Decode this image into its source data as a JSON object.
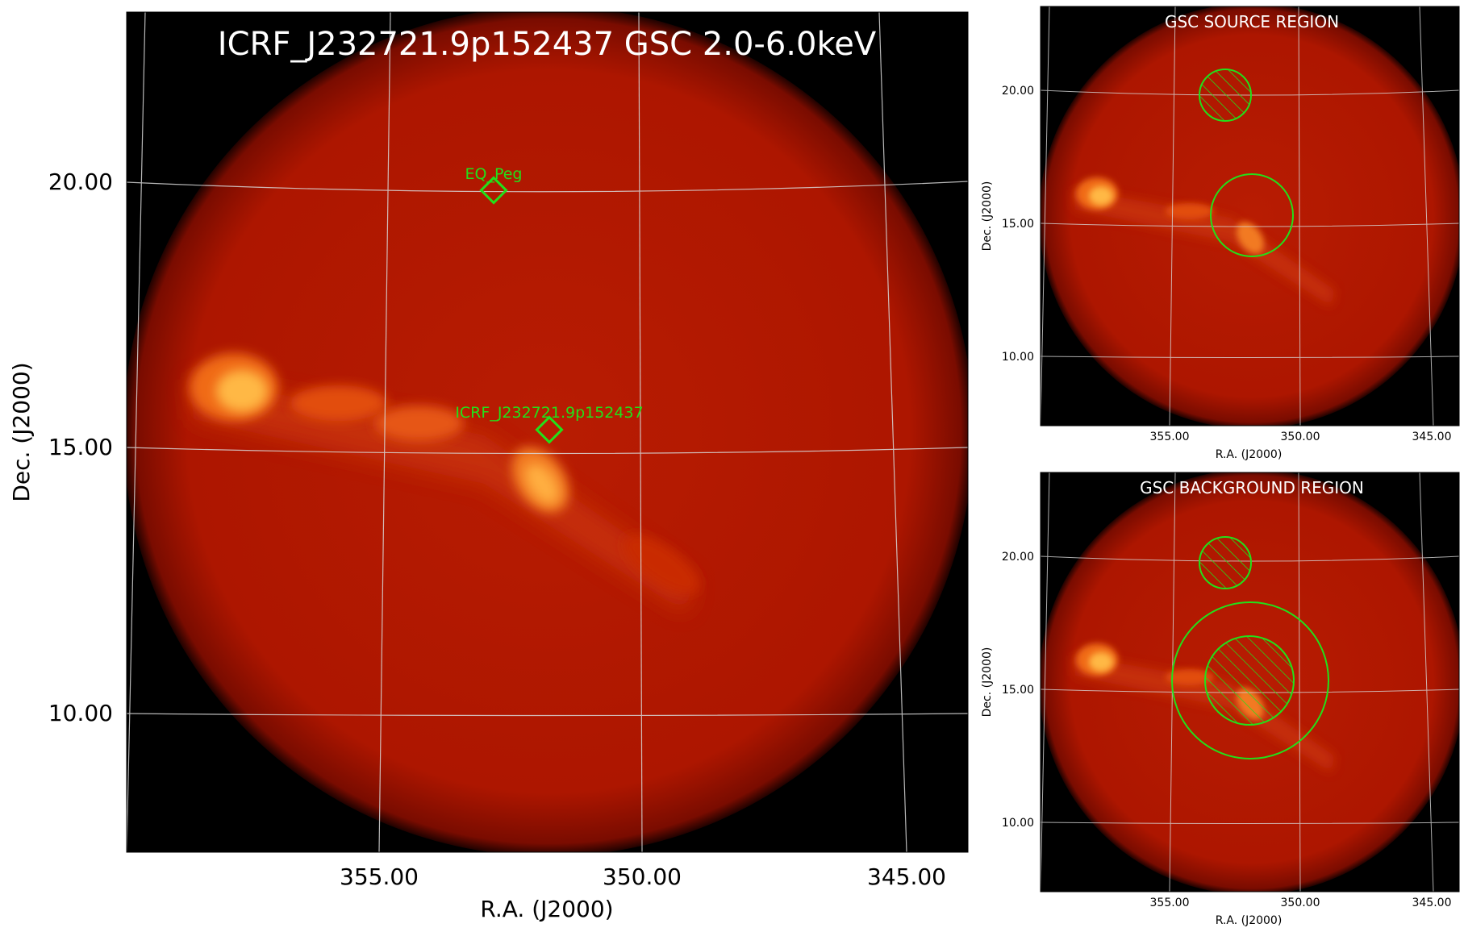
{
  "main": {
    "title": "ICRF_J232721.9p152437 GSC 2.0-6.0keV",
    "xlabel": "R.A. (J2000)",
    "ylabel": "Dec. (J2000)",
    "ra_ticks": [
      "355.00",
      "350.00",
      "345.00"
    ],
    "dec_ticks": [
      "20.00",
      "15.00",
      "10.00"
    ],
    "markers": [
      {
        "label": "EQ_Peg",
        "color": "#22e01a"
      },
      {
        "label": "ICRF_J232721.9p152437",
        "color": "#22e01a"
      }
    ]
  },
  "source_panel": {
    "title": "GSC SOURCE REGION",
    "xlabel": "R.A. (J2000)",
    "ylabel": "Dec. (J2000)",
    "ra_ticks": [
      "355.00",
      "350.00",
      "345.00"
    ],
    "dec_ticks": [
      "20.00",
      "15.00",
      "10.00"
    ]
  },
  "background_panel": {
    "title": "GSC BACKGROUND REGION",
    "xlabel": "R.A. (J2000)",
    "ylabel": "Dec. (J2000)",
    "ra_ticks": [
      "355.00",
      "350.00",
      "345.00"
    ],
    "dec_ticks": [
      "20.00",
      "15.00",
      "10.00"
    ]
  },
  "colors": {
    "region": "#22e01a",
    "sky_edge": "#a51200",
    "sky_center": "#b81a00",
    "hot": "#ffb040",
    "grid": "#d8d8d8"
  }
}
